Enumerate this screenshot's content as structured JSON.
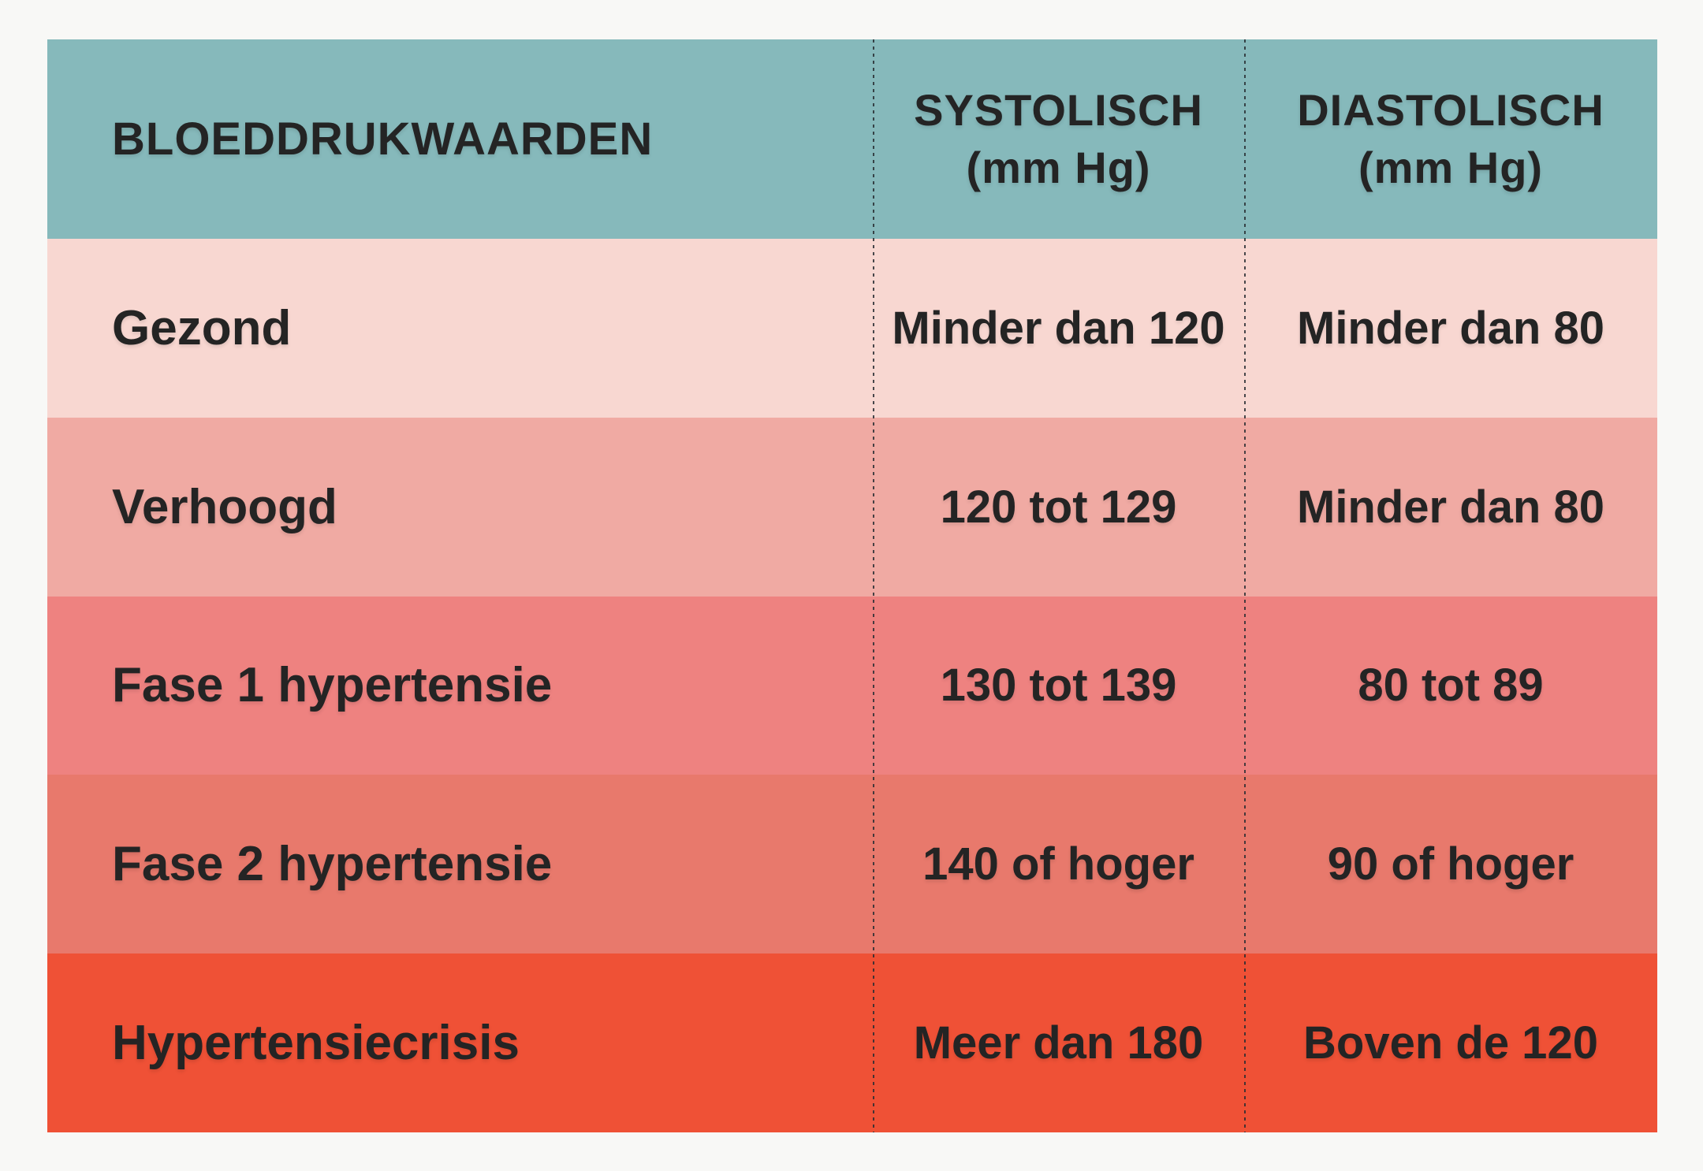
{
  "page": {
    "background": "#f8f8f6"
  },
  "table": {
    "header": {
      "category": "BLOEDDRUKWAARDEN",
      "systolic_line1": "SYSTOLISCH",
      "systolic_line2": "(mm Hg)",
      "diastolic_line1": "DIASTOLISCH",
      "diastolic_line2": "(mm Hg)"
    },
    "colors": {
      "header_bg": "#86b9bb",
      "text": "#242424",
      "divider": "#2d3436"
    },
    "rows": [
      {
        "label": "Gezond",
        "systolic": "Minder dan 120",
        "diastolic": "Minder dan 80",
        "color": "#f8d7d1"
      },
      {
        "label": "Verhoogd",
        "systolic": "120 tot 129",
        "diastolic": "Minder dan 80",
        "color": "#f0aaa3"
      },
      {
        "label": "Fase 1 hypertensie",
        "systolic": "130 tot 139",
        "diastolic": "80 tot 89",
        "color": "#ee8280"
      },
      {
        "label": "Fase 2 hypertensie",
        "systolic": "140 of hoger",
        "diastolic": "90 of hoger",
        "color": "#e8796c"
      },
      {
        "label": "Hypertensiecrisis",
        "systolic": "Meer dan 180",
        "diastolic": "Boven de 120",
        "color": "#ef5136"
      }
    ]
  },
  "chart_data": {
    "type": "table",
    "title": "BLOEDDRUKWAARDEN",
    "columns": [
      "BLOEDDRUKWAARDEN",
      "SYSTOLISCH (mm Hg)",
      "DIASTOLISCH (mm Hg)"
    ],
    "rows": [
      [
        "Gezond",
        "Minder dan 120",
        "Minder dan 80"
      ],
      [
        "Verhoogd",
        "120 tot 129",
        "Minder dan 80"
      ],
      [
        "Fase 1 hypertensie",
        "130 tot 139",
        "80 tot 89"
      ],
      [
        "Fase 2 hypertensie",
        "140 of hoger",
        "90 of hoger"
      ],
      [
        "Hypertensiecrisis",
        "Meer dan 180",
        "Boven de 120"
      ]
    ],
    "row_colors": [
      "#f8d7d1",
      "#f0aaa3",
      "#ee8280",
      "#e8796c",
      "#ef5136"
    ],
    "header_color": "#86b9bb",
    "legend_position": "none",
    "grid": "dashed-column-dividers"
  }
}
